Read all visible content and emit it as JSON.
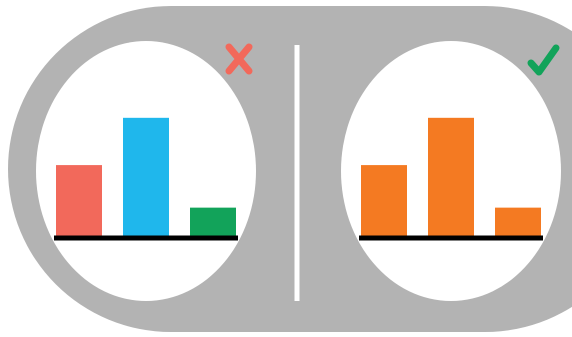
{
  "colors": {
    "background": "#ffffff",
    "panel": "#b3b3b3",
    "divider": "#ffffff",
    "axis": "#000000",
    "wrong_mark": "#f2695b",
    "right_mark": "#12a35a"
  },
  "panels": [
    {
      "verdict": "incorrect",
      "icon": "cross-icon"
    },
    {
      "verdict": "correct",
      "icon": "checkmark-icon"
    }
  ],
  "chart_data": [
    {
      "type": "bar",
      "title": "",
      "xlabel": "",
      "ylabel": "",
      "categories": [
        "",
        "",
        ""
      ],
      "values": [
        3,
        5,
        1.2
      ],
      "ylim": [
        0,
        5.5
      ],
      "bar_colors": [
        "#f2695b",
        "#1fb7ec",
        "#12a35a"
      ],
      "grid": false,
      "legend": "none"
    },
    {
      "type": "bar",
      "title": "",
      "xlabel": "",
      "ylabel": "",
      "categories": [
        "",
        "",
        ""
      ],
      "values": [
        3,
        5,
        1.2
      ],
      "ylim": [
        0,
        5.5
      ],
      "bar_colors": [
        "#f47a22",
        "#f47a22",
        "#f47a22"
      ],
      "grid": false,
      "legend": "none"
    }
  ]
}
